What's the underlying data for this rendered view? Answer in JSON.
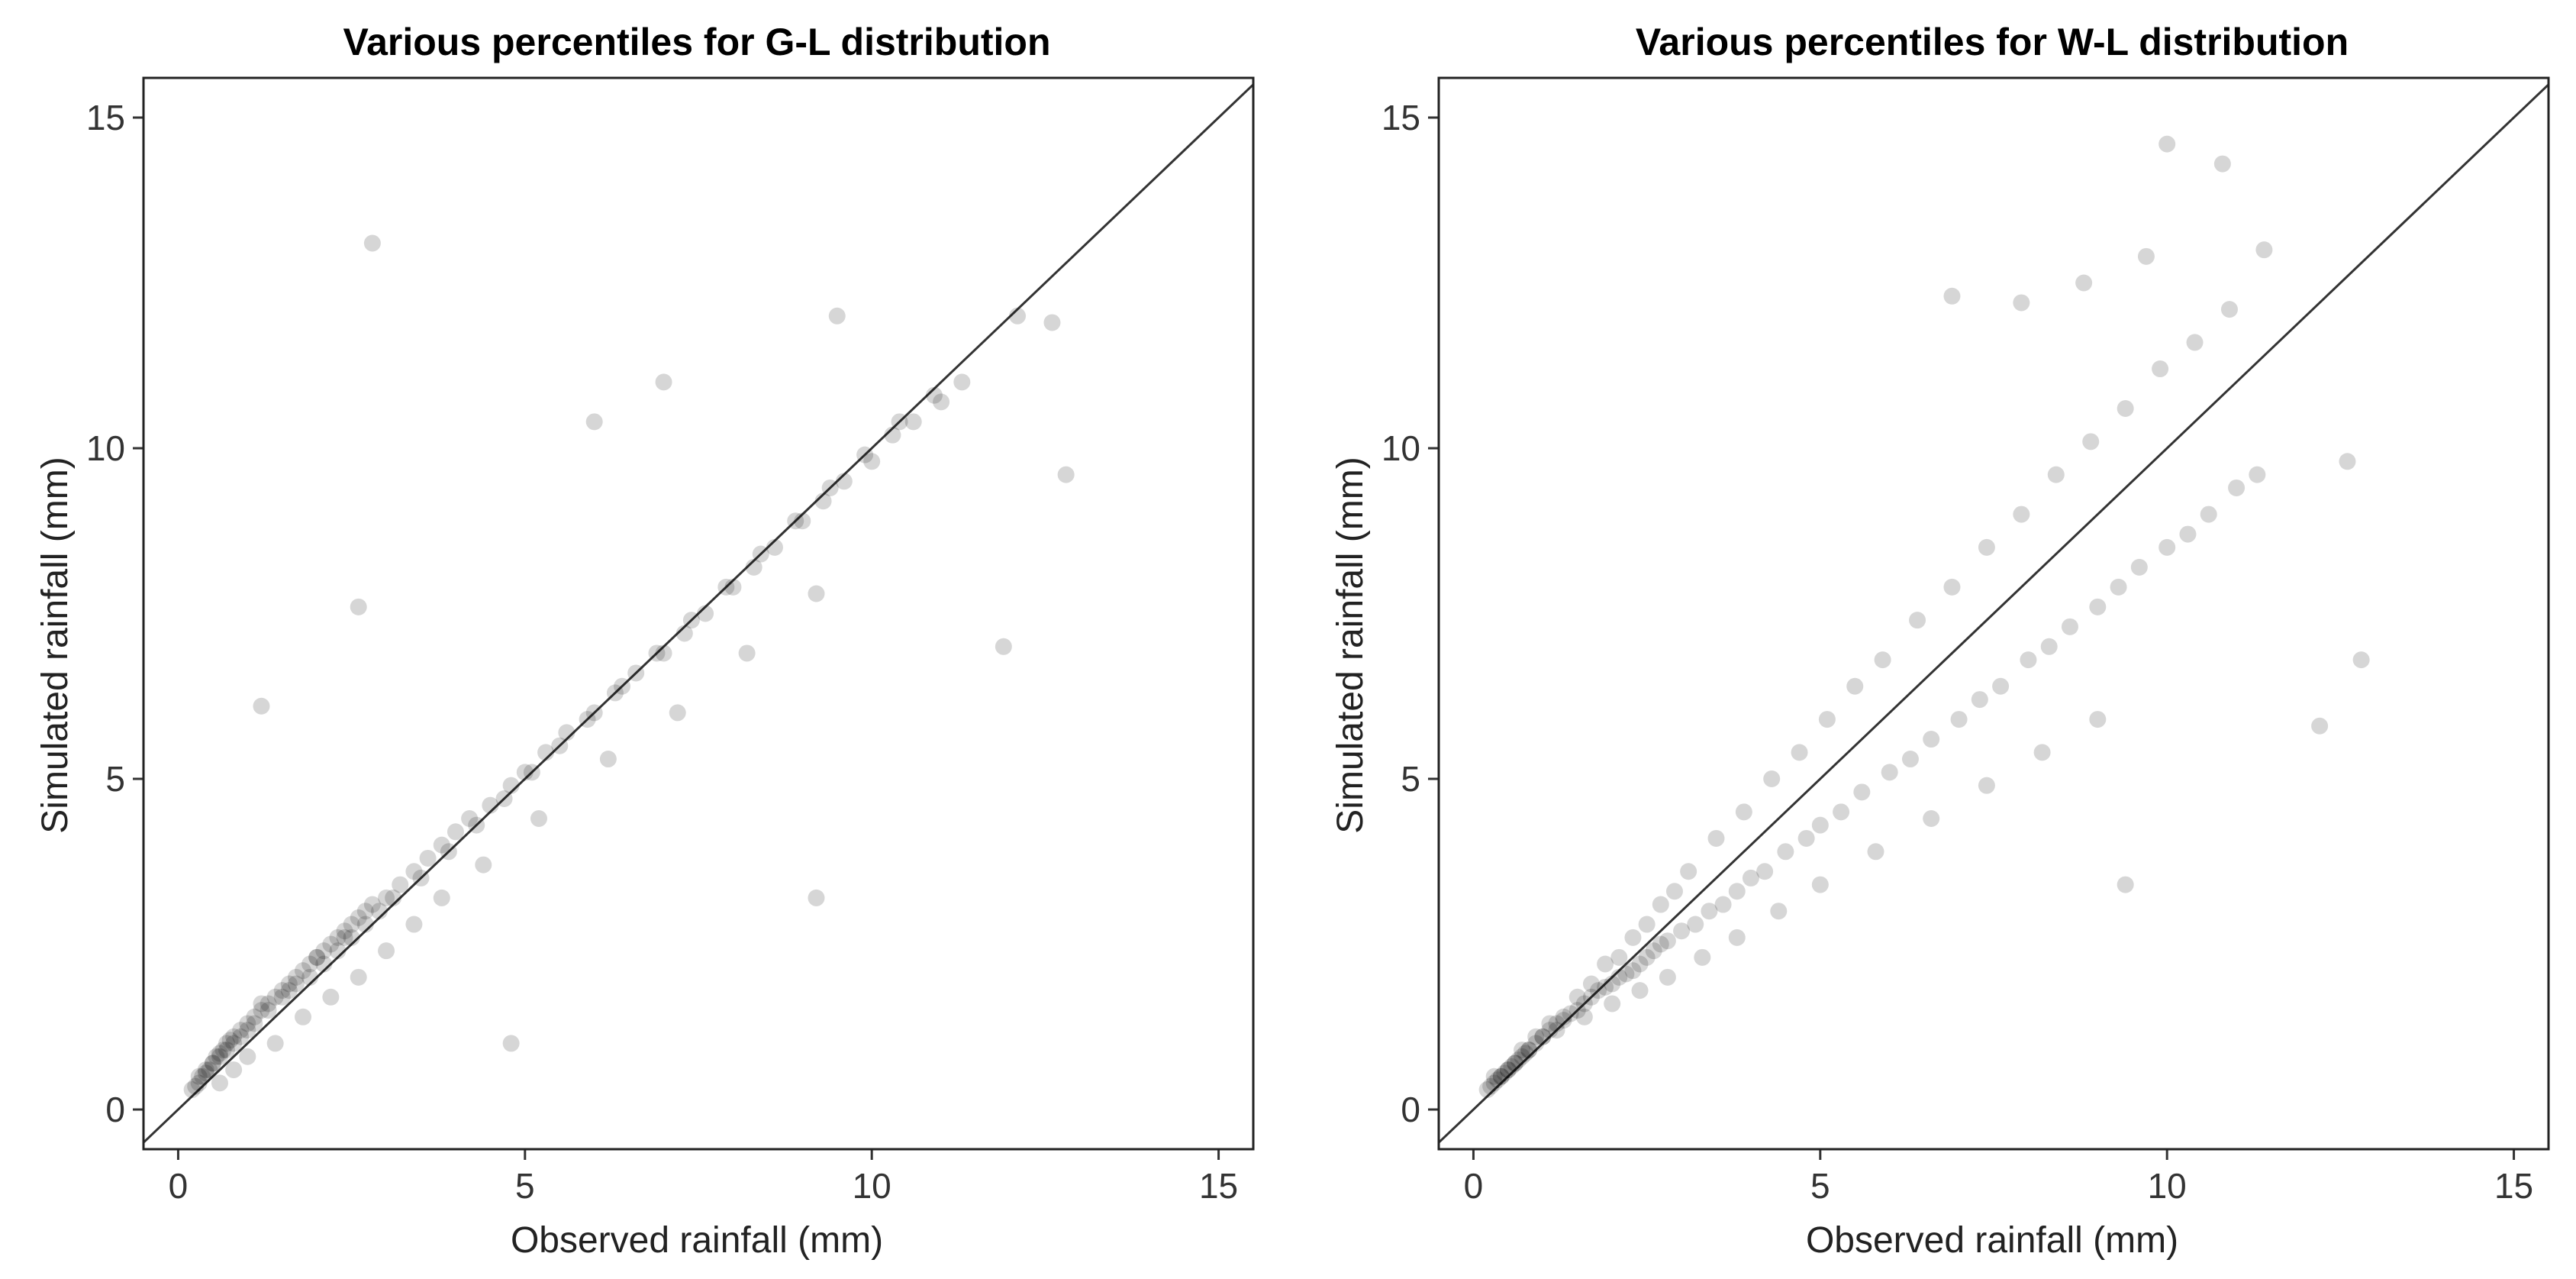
{
  "chart_data": [
    {
      "type": "scatter",
      "title": "Various percentiles for G-L distribution",
      "xlabel": "Observed rainfall (mm)",
      "ylabel": "Simulated rainfall (mm)",
      "xlim": [
        -0.5,
        15.5
      ],
      "ylim": [
        -0.6,
        15.6
      ],
      "xticks": [
        "0",
        "5",
        "10",
        "15"
      ],
      "yticks": [
        "0",
        "5",
        "10",
        "15"
      ],
      "reference_line": "y = x",
      "grid": false,
      "point_color": "#000000",
      "x": [
        0.2,
        0.25,
        0.3,
        0.35,
        0.4,
        0.45,
        0.5,
        0.55,
        0.6,
        0.65,
        0.7,
        0.75,
        0.8,
        0.9,
        1.0,
        1.1,
        1.2,
        1.3,
        1.4,
        1.5,
        1.6,
        1.7,
        1.8,
        1.9,
        2.0,
        2.1,
        2.2,
        2.3,
        2.4,
        2.5,
        2.6,
        2.7,
        2.8,
        3.0,
        3.2,
        3.4,
        3.6,
        3.8,
        4.0,
        4.2,
        4.5,
        4.8,
        5.0,
        5.3,
        5.6,
        6.0,
        6.3,
        6.6,
        7.0,
        7.3,
        7.6,
        8.0,
        8.3,
        8.6,
        9.0,
        9.3,
        9.6,
        10.0,
        10.3,
        10.6,
        11.0,
        11.3,
        0.3,
        0.5,
        0.7,
        0.9,
        1.1,
        1.3,
        1.5,
        1.7,
        1.9,
        2.1,
        2.3,
        2.5,
        2.7,
        2.9,
        3.1,
        3.5,
        3.9,
        4.3,
        4.7,
        5.1,
        5.5,
        5.9,
        6.4,
        6.9,
        7.4,
        7.9,
        8.4,
        8.9,
        9.4,
        9.9,
        10.4,
        10.9,
        1.2,
        2.8,
        2.6,
        6.0,
        7.0,
        9.5,
        12.1,
        12.8,
        12.6,
        11.9,
        9.2,
        4.8,
        0.6,
        0.8,
        1.0,
        1.4,
        1.8,
        2.2,
        2.6,
        3.0,
        3.4,
        3.8,
        4.4,
        5.2,
        6.2,
        7.2,
        8.2,
        9.2,
        0.4,
        0.6,
        0.8,
        1.0,
        1.2,
        1.6,
        2.0,
        2.4
      ],
      "y": [
        0.3,
        0.35,
        0.4,
        0.5,
        0.55,
        0.6,
        0.7,
        0.8,
        0.85,
        0.9,
        1.0,
        1.05,
        1.1,
        1.2,
        1.3,
        1.4,
        1.5,
        1.6,
        1.7,
        1.8,
        1.9,
        2.0,
        2.1,
        2.2,
        2.3,
        2.4,
        2.5,
        2.6,
        2.7,
        2.8,
        2.9,
        3.0,
        3.1,
        3.2,
        3.4,
        3.6,
        3.8,
        4.0,
        4.2,
        4.4,
        4.6,
        4.9,
        5.1,
        5.4,
        5.7,
        6.0,
        6.3,
        6.6,
        6.9,
        7.2,
        7.5,
        7.9,
        8.2,
        8.5,
        8.9,
        9.2,
        9.5,
        9.8,
        10.2,
        10.4,
        10.7,
        11.0,
        0.5,
        0.7,
        0.9,
        1.1,
        1.3,
        1.5,
        1.7,
        1.9,
        2.0,
        2.2,
        2.4,
        2.6,
        2.8,
        3.0,
        3.2,
        3.5,
        3.9,
        4.3,
        4.7,
        5.1,
        5.5,
        5.9,
        6.4,
        6.9,
        7.4,
        7.9,
        8.4,
        8.9,
        9.4,
        9.9,
        10.4,
        10.8,
        6.1,
        13.1,
        7.6,
        10.4,
        11.0,
        12.0,
        12.0,
        9.6,
        11.9,
        7.0,
        3.2,
        1.0,
        0.4,
        0.6,
        0.8,
        1.0,
        1.4,
        1.7,
        2.0,
        2.4,
        2.8,
        3.2,
        3.7,
        4.4,
        5.3,
        6.0,
        6.9,
        7.8,
        0.6,
        0.8,
        1.0,
        1.2,
        1.6,
        1.8,
        2.3,
        2.6
      ]
    },
    {
      "type": "scatter",
      "title": "Various percentiles for W-L distribution",
      "xlabel": "Observed rainfall (mm)",
      "ylabel": "Simulated rainfall (mm)",
      "xlim": [
        -0.5,
        15.5
      ],
      "ylim": [
        -0.6,
        15.6
      ],
      "xticks": [
        "0",
        "5",
        "10",
        "15"
      ],
      "yticks": [
        "0",
        "5",
        "10",
        "15"
      ],
      "reference_line": "y = x",
      "grid": false,
      "point_color": "#000000",
      "x": [
        0.2,
        0.25,
        0.3,
        0.35,
        0.4,
        0.45,
        0.5,
        0.55,
        0.6,
        0.65,
        0.7,
        0.75,
        0.8,
        0.9,
        1.0,
        1.1,
        1.2,
        1.3,
        1.4,
        1.5,
        1.6,
        1.7,
        1.8,
        1.9,
        2.0,
        2.1,
        2.2,
        2.3,
        2.4,
        2.5,
        2.6,
        2.7,
        2.8,
        3.0,
        3.2,
        3.4,
        3.6,
        3.8,
        4.0,
        4.2,
        4.5,
        4.8,
        5.0,
        5.3,
        5.6,
        6.0,
        6.3,
        6.6,
        7.0,
        7.3,
        7.6,
        8.0,
        8.3,
        8.6,
        9.0,
        9.3,
        9.6,
        10.0,
        10.3,
        10.6,
        11.0,
        11.3,
        0.3,
        0.5,
        0.7,
        0.9,
        1.1,
        1.3,
        1.5,
        1.7,
        1.9,
        2.1,
        2.3,
        2.5,
        2.7,
        2.9,
        3.1,
        3.5,
        3.9,
        4.3,
        4.7,
        5.1,
        5.5,
        5.9,
        6.4,
        6.9,
        7.4,
        7.9,
        8.4,
        8.9,
        9.4,
        9.9,
        10.4,
        10.9,
        10.0,
        10.8,
        11.4,
        9.7,
        6.9,
        7.9,
        8.8,
        12.6,
        12.8,
        12.2,
        9.4,
        0.4,
        0.6,
        0.8,
        1.0,
        1.2,
        1.6,
        2.0,
        2.4,
        2.8,
        3.3,
        3.8,
        4.4,
        5.0,
        5.8,
        6.6,
        7.4,
        8.2,
        9.0
      ],
      "y": [
        0.3,
        0.35,
        0.4,
        0.45,
        0.5,
        0.55,
        0.6,
        0.65,
        0.7,
        0.75,
        0.8,
        0.85,
        0.9,
        1.0,
        1.1,
        1.2,
        1.3,
        1.35,
        1.45,
        1.5,
        1.6,
        1.7,
        1.8,
        1.85,
        1.9,
        2.0,
        2.05,
        2.1,
        2.2,
        2.3,
        2.4,
        2.5,
        2.55,
        2.7,
        2.8,
        3.0,
        3.1,
        3.3,
        3.5,
        3.6,
        3.9,
        4.1,
        4.3,
        4.5,
        4.8,
        5.1,
        5.3,
        5.6,
        5.9,
        6.2,
        6.4,
        6.8,
        7.0,
        7.3,
        7.6,
        7.9,
        8.2,
        8.5,
        8.7,
        9.0,
        9.4,
        9.6,
        0.5,
        0.6,
        0.9,
        1.1,
        1.3,
        1.4,
        1.7,
        1.9,
        2.2,
        2.3,
        2.6,
        2.8,
        3.1,
        3.3,
        3.6,
        4.1,
        4.5,
        5.0,
        5.4,
        5.9,
        6.4,
        6.8,
        7.4,
        7.9,
        8.5,
        9.0,
        9.6,
        10.1,
        10.6,
        11.2,
        11.6,
        12.1,
        14.6,
        14.3,
        13.0,
        12.9,
        12.3,
        12.2,
        12.5,
        9.8,
        6.8,
        5.8,
        3.4,
        0.5,
        0.7,
        0.9,
        1.1,
        1.2,
        1.4,
        1.6,
        1.8,
        2.0,
        2.3,
        2.6,
        3.0,
        3.4,
        3.9,
        4.4,
        4.9,
        5.4,
        5.9
      ]
    }
  ]
}
